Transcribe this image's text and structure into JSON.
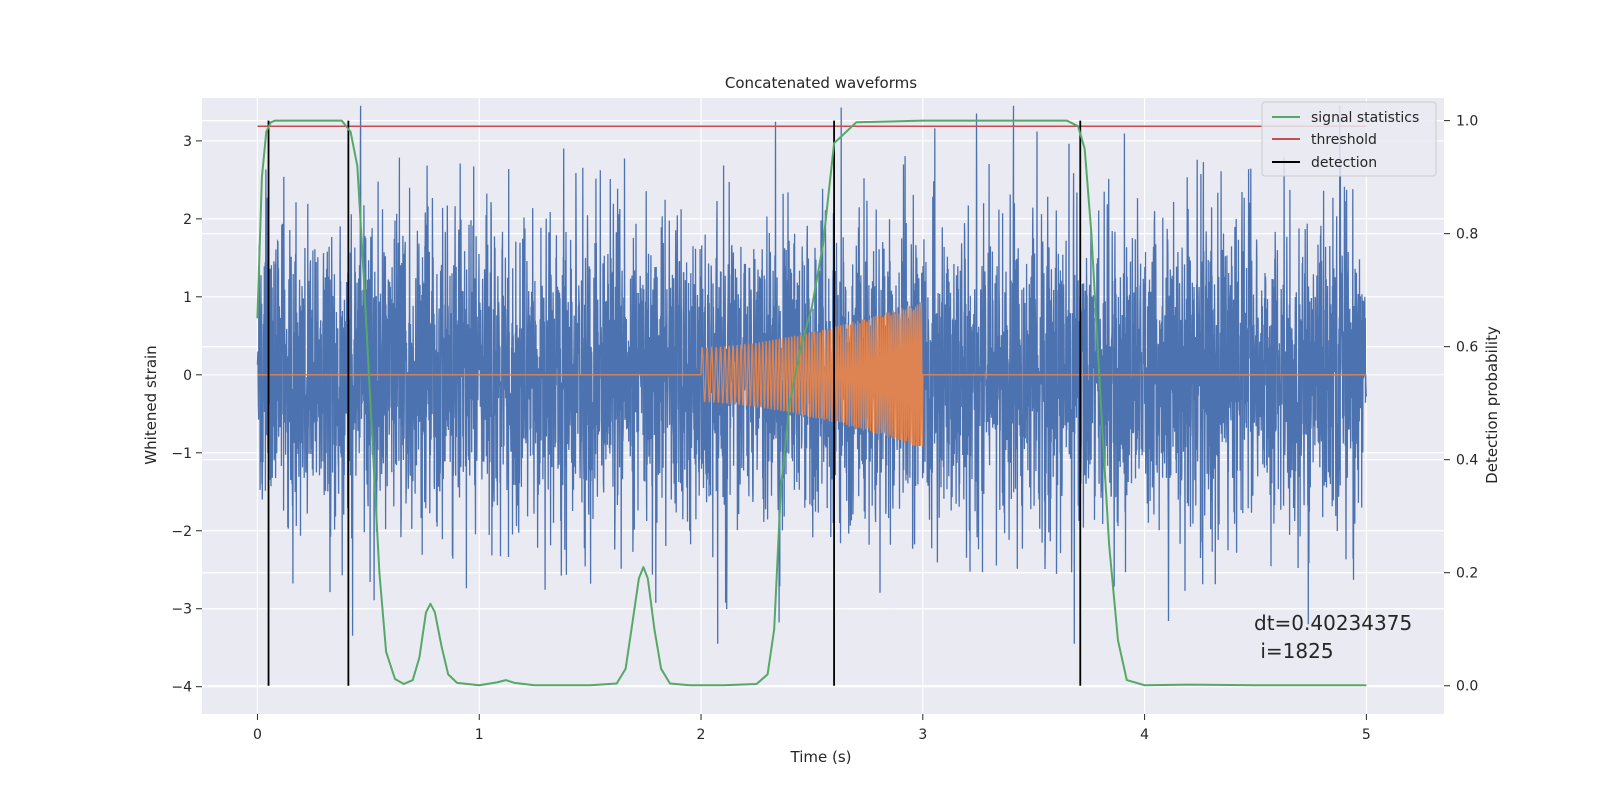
{
  "chart_data": {
    "type": "line",
    "title": "Concatenated waveforms",
    "xlabel": "Time (s)",
    "ylabel_left": "Whitened strain",
    "ylabel_right": "Detection probability",
    "xlim": [
      -0.25,
      5.35
    ],
    "ylim_left": [
      -4.35,
      3.55
    ],
    "ylim_right": [
      -0.05,
      1.04
    ],
    "xticks": [
      0,
      1,
      2,
      3,
      4,
      5
    ],
    "yticks_left": [
      -4,
      -3,
      -2,
      -1,
      0,
      1,
      2,
      3
    ],
    "yticks_right": [
      0.0,
      0.2,
      0.4,
      0.6,
      0.8,
      1.0
    ],
    "ytick_labels_left": [
      "−4",
      "−3",
      "−2",
      "−1",
      "0",
      "1",
      "2",
      "3"
    ],
    "ytick_labels_right": [
      "0.0",
      "0.2",
      "0.4",
      "0.6",
      "0.8",
      "1.0"
    ],
    "xtick_labels": [
      "0",
      "1",
      "2",
      "3",
      "4",
      "5"
    ],
    "grid": true,
    "legend_position": "top-right",
    "colors": {
      "strain": "#4c72b0",
      "template": "#dd8452",
      "signal_statistics": "#55a868",
      "threshold": "#c44e52",
      "detection": "#000000",
      "plot_bg": "#eaeaf2",
      "grid": "#ffffff"
    },
    "series": [
      {
        "name": "signal statistics",
        "axis": "right",
        "x": [
          0.0,
          0.02,
          0.04,
          0.06,
          0.08,
          0.1,
          0.15,
          0.2,
          0.3,
          0.38,
          0.42,
          0.45,
          0.48,
          0.52,
          0.55,
          0.58,
          0.62,
          0.66,
          0.7,
          0.73,
          0.76,
          0.78,
          0.8,
          0.83,
          0.86,
          0.9,
          1.0,
          1.08,
          1.12,
          1.16,
          1.25,
          1.5,
          1.62,
          1.66,
          1.69,
          1.72,
          1.74,
          1.76,
          1.79,
          1.82,
          1.86,
          1.95,
          2.1,
          2.25,
          2.3,
          2.33,
          2.36,
          2.4,
          2.45,
          2.5,
          2.55,
          2.6,
          2.7,
          3.0,
          3.5,
          3.65,
          3.7,
          3.73,
          3.76,
          3.8,
          3.84,
          3.88,
          3.92,
          4.0,
          4.2,
          4.5,
          5.0
        ],
        "values": [
          0.65,
          0.9,
          0.98,
          0.997,
          1.0,
          1.0,
          1.0,
          1.0,
          1.0,
          1.0,
          0.98,
          0.92,
          0.72,
          0.42,
          0.2,
          0.06,
          0.012,
          0.003,
          0.01,
          0.05,
          0.13,
          0.145,
          0.13,
          0.07,
          0.02,
          0.005,
          0.001,
          0.006,
          0.01,
          0.005,
          0.001,
          0.001,
          0.004,
          0.03,
          0.11,
          0.19,
          0.21,
          0.19,
          0.1,
          0.03,
          0.004,
          0.001,
          0.001,
          0.003,
          0.02,
          0.1,
          0.35,
          0.5,
          0.6,
          0.67,
          0.78,
          0.96,
          0.997,
          1.0,
          1.0,
          1.0,
          0.99,
          0.95,
          0.8,
          0.52,
          0.25,
          0.08,
          0.01,
          0.001,
          0.002,
          0.001,
          0.001
        ]
      },
      {
        "name": "threshold",
        "axis": "right",
        "x": [
          0.0,
          5.0
        ],
        "values": [
          0.99,
          0.99
        ]
      },
      {
        "name": "detection",
        "axis": "right",
        "type": "vlines",
        "x": [
          0.05,
          0.41,
          2.6,
          3.71
        ],
        "ymin": 0.0,
        "ymax": 1.0
      },
      {
        "axis": "left",
        "description_of_style": "noise",
        "x_range": [
          0.0,
          5.0
        ],
        "typical_amplitude": 1.0,
        "max_abs": 3.45
      },
      {
        "axis": "left",
        "description_of_style": "chirp",
        "x_range": [
          0.0,
          5.0
        ],
        "chirp_start": 2.0,
        "chirp_end": 3.0,
        "start_amplitude": 0.35,
        "end_amplitude": 0.95
      }
    ],
    "annotations": [
      {
        "text": "dt=0.40234375",
        "x": 4.5,
        "y": -3.15
      },
      {
        "text": " i=1825",
        "x": 4.5,
        "y": -3.52
      }
    ]
  },
  "legend": {
    "items": [
      {
        "label": "signal statistics",
        "color": "#55a868"
      },
      {
        "label": "threshold",
        "color": "#c44e52"
      },
      {
        "label": "detection",
        "color": "#000000"
      }
    ]
  }
}
